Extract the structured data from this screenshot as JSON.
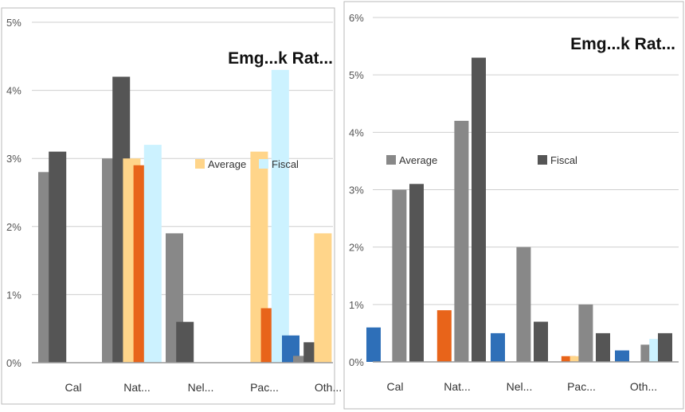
{
  "chart_data": [
    {
      "type": "bar",
      "title": "Emg...k Rat...",
      "categories": [
        "Cal",
        "Nat...",
        "Nel...",
        "Pac...",
        "Oth..."
      ],
      "ylim": [
        0,
        5
      ],
      "y_ticks": [
        "0%",
        "1%",
        "2%",
        "3%",
        "4%",
        "5%"
      ],
      "grid": true,
      "legend_position": "middle-right",
      "series": [
        {
          "name": "",
          "color": "#888888",
          "values": [
            2.8,
            3.0,
            1.9,
            0.0,
            0.1
          ]
        },
        {
          "name": "",
          "color": "#555555",
          "values": [
            3.1,
            4.2,
            0.6,
            0.0,
            0.3
          ]
        },
        {
          "name": "Average",
          "color": "#FFD58A",
          "values": [
            0.0,
            3.0,
            0.0,
            3.1,
            1.9
          ]
        },
        {
          "name": "",
          "color": "#E8641A",
          "values": [
            0.0,
            2.9,
            0.0,
            0.8,
            0.0
          ]
        },
        {
          "name": "Fiscal",
          "color": "#CCF2FF",
          "values": [
            0.0,
            3.2,
            0.0,
            4.3,
            0.0
          ]
        },
        {
          "name": "",
          "color": "#2E6FB8",
          "values": [
            0.0,
            0.0,
            0.0,
            0.4,
            0.0
          ]
        }
      ]
    },
    {
      "type": "bar",
      "title": "Emg...k Rat...",
      "categories": [
        "Cal",
        "Nat...",
        "Nel...",
        "Pac...",
        "Oth..."
      ],
      "ylim": [
        0,
        6
      ],
      "y_ticks": [
        "0%",
        "1%",
        "2%",
        "3%",
        "4%",
        "5%",
        "6%"
      ],
      "grid": true,
      "legend_position": "top-right",
      "series": [
        {
          "name": "",
          "color": "#2E6FB8",
          "values": [
            0.6,
            0.0,
            0.5,
            0.0,
            0.2
          ]
        },
        {
          "name": "",
          "color": "#E8641A",
          "values": [
            0.0,
            0.9,
            0.0,
            0.1,
            0.0
          ]
        },
        {
          "name": "",
          "color": "#FFD58A",
          "values": [
            0.0,
            0.0,
            0.0,
            0.1,
            0.0
          ]
        },
        {
          "name": "Average",
          "color": "#888888",
          "values": [
            3.0,
            4.2,
            2.0,
            1.0,
            0.3
          ]
        },
        {
          "name": "",
          "color": "#CCF2FF",
          "values": [
            0.0,
            0.0,
            0.0,
            0.0,
            0.4
          ]
        },
        {
          "name": "Fiscal",
          "color": "#555555",
          "values": [
            3.1,
            5.3,
            0.7,
            0.5,
            0.5
          ]
        }
      ]
    }
  ]
}
